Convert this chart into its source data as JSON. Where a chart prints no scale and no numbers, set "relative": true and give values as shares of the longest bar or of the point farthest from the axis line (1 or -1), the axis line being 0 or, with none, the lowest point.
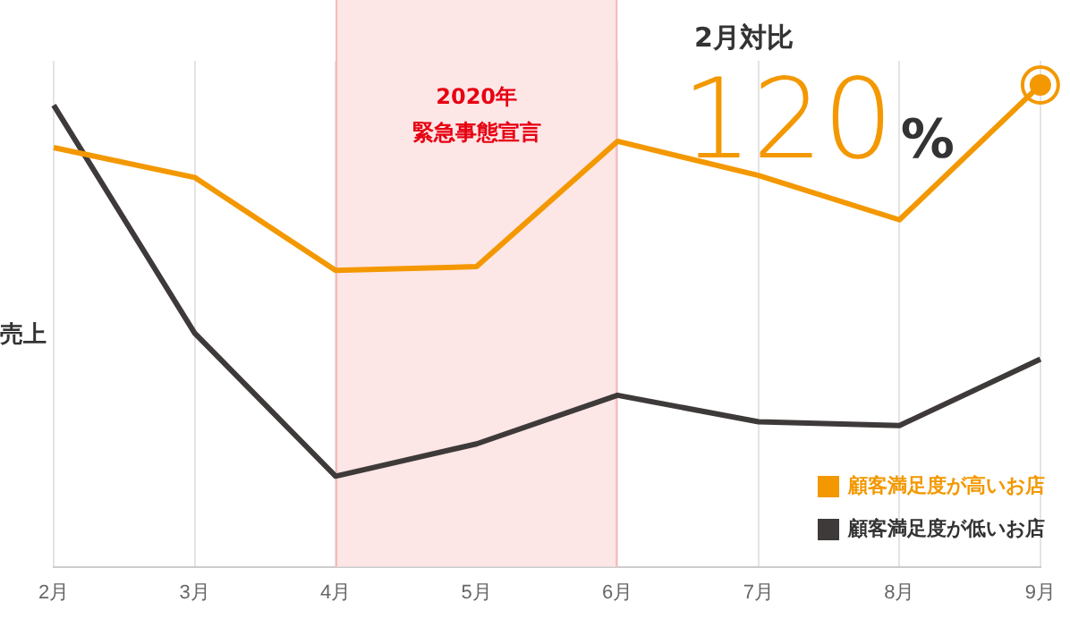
{
  "chart_data": {
    "type": "line",
    "ylabel": "売上",
    "relative": true,
    "grid": "x",
    "legend": "bottom right",
    "marker": "none",
    "line_style": "solid",
    "categories": [
      "2月",
      "3月",
      "4月",
      "5月",
      "6月",
      "7月",
      "8月",
      "9月"
    ],
    "series": [
      {
        "name": "顧客満足度が高いお店",
        "color": "#f39800",
        "values": [
          0.87,
          0.808,
          0.615,
          0.623,
          0.883,
          0.812,
          0.72,
          1
        ]
      },
      {
        "name": "顧客満足度が低いお店",
        "color": "#3e3a39",
        "values": [
          0.958,
          0.485,
          0.188,
          0.255,
          0.356,
          0.301,
          0.293,
          0.431
        ]
      }
    ],
    "bands": [
      {
        "axis": "x",
        "from": "4月",
        "to": "6月",
        "label": "2020年緊急事態宣言",
        "color": "#fde6e6"
      }
    ],
    "annotations": [
      "2月対比",
      {
        "text": "120%",
        "x": "9月",
        "y": 1
      }
    ]
  }
}
